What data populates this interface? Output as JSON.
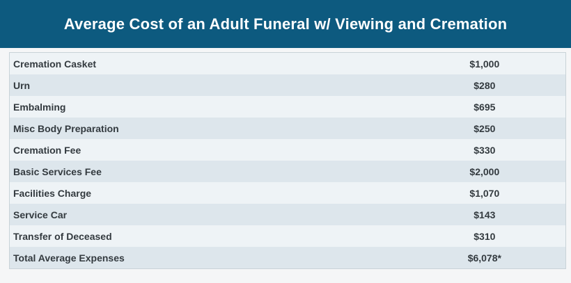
{
  "header": {
    "title": "Average Cost of an Adult Funeral w/ Viewing and Cremation"
  },
  "table": {
    "rows": [
      {
        "label": "Cremation Casket",
        "value": "$1,000"
      },
      {
        "label": "Urn",
        "value": "$280"
      },
      {
        "label": "Embalming",
        "value": "$695"
      },
      {
        "label": "Misc Body Preparation",
        "value": "$250"
      },
      {
        "label": "Cremation Fee",
        "value": "$330"
      },
      {
        "label": "Basic Services Fee",
        "value": "$2,000"
      },
      {
        "label": "Facilities Charge",
        "value": "$1,070"
      },
      {
        "label": "Service Car",
        "value": "$143"
      },
      {
        "label": "Transfer of Deceased",
        "value": "$310"
      },
      {
        "label": "Total Average Expenses",
        "value": "$6,078*"
      }
    ]
  },
  "colors": {
    "header_bg": "#0d5a7f",
    "row_light": "#eef3f6",
    "row_dark": "#dde6ec",
    "text": "#333a3f"
  }
}
